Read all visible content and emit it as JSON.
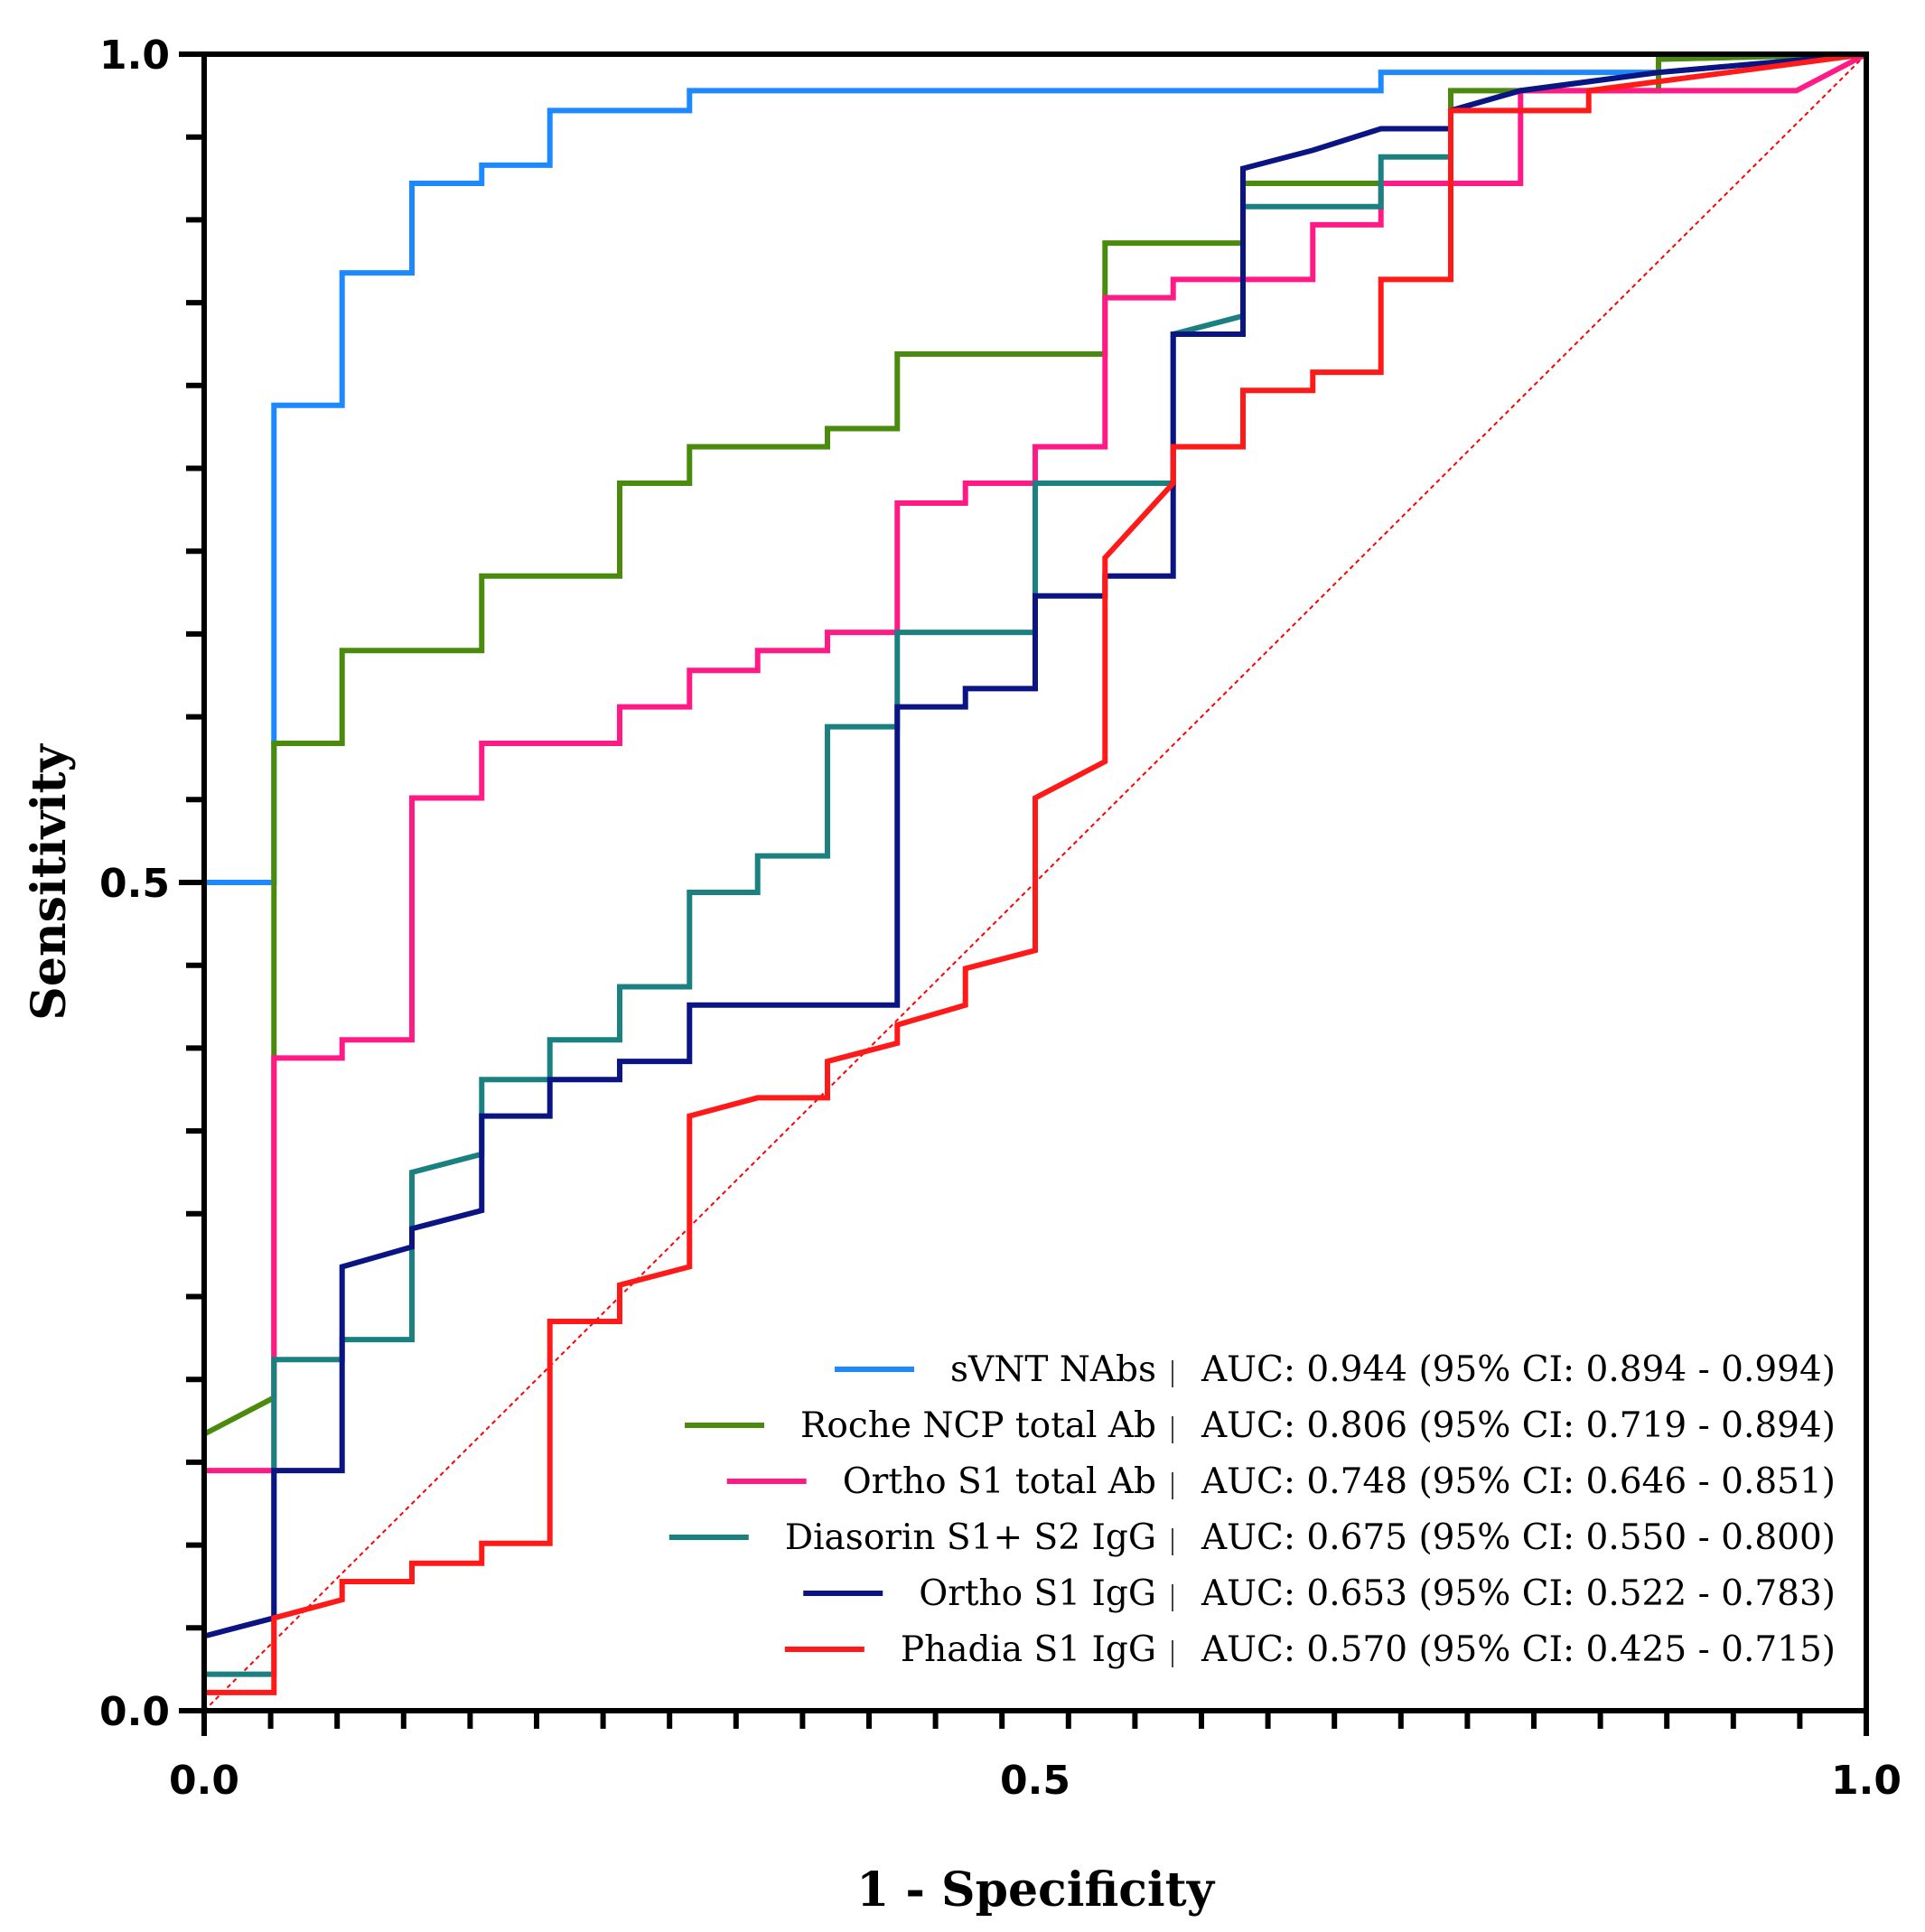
{
  "chart_data": {
    "type": "line",
    "title": "",
    "xlabel": "1 - Specificity",
    "ylabel": "Sensitivity",
    "xlim": [
      0,
      1
    ],
    "ylim": [
      0,
      1
    ],
    "x_major_ticks": [
      "0.0",
      "0.5",
      "1.0"
    ],
    "y_major_ticks": [
      "0.0",
      "0.5",
      "1.0"
    ],
    "grid": false,
    "legend_position": "bottom-right",
    "reference_line": {
      "name": "chance",
      "color": "#ff0000",
      "points": [
        [
          0,
          0
        ],
        [
          1,
          1
        ]
      ]
    },
    "series": [
      {
        "name": "sVNT NAbs",
        "auc_text": "AUC: 0.944 (95% CI: 0.894 - 0.994)",
        "color": "#1e88ff",
        "points": [
          [
            0,
            0
          ],
          [
            0,
            0.5
          ],
          [
            0.042,
            0.5
          ],
          [
            0.042,
            0.788
          ],
          [
            0.083,
            0.788
          ],
          [
            0.083,
            0.868
          ],
          [
            0.125,
            0.868
          ],
          [
            0.125,
            0.922
          ],
          [
            0.167,
            0.922
          ],
          [
            0.167,
            0.933
          ],
          [
            0.208,
            0.933
          ],
          [
            0.208,
            0.966
          ],
          [
            0.292,
            0.966
          ],
          [
            0.292,
            0.978
          ],
          [
            0.708,
            0.978
          ],
          [
            0.708,
            0.989
          ],
          [
            0.875,
            0.989
          ],
          [
            0.875,
            0.997
          ],
          [
            1,
            1
          ]
        ]
      },
      {
        "name": "Roche NCP total Ab",
        "auc_text": "AUC: 0.806 (95% CI: 0.719 - 0.894)",
        "color": "#4a8a0c",
        "points": [
          [
            0,
            0.167
          ],
          [
            0.042,
            0.189
          ],
          [
            0.042,
            0.584
          ],
          [
            0.083,
            0.584
          ],
          [
            0.083,
            0.64
          ],
          [
            0.167,
            0.64
          ],
          [
            0.167,
            0.685
          ],
          [
            0.25,
            0.685
          ],
          [
            0.25,
            0.741
          ],
          [
            0.292,
            0.741
          ],
          [
            0.292,
            0.763
          ],
          [
            0.375,
            0.763
          ],
          [
            0.375,
            0.774
          ],
          [
            0.417,
            0.774
          ],
          [
            0.417,
            0.819
          ],
          [
            0.5,
            0.819
          ],
          [
            0.5,
            0.819
          ],
          [
            0.542,
            0.819
          ],
          [
            0.542,
            0.886
          ],
          [
            0.625,
            0.886
          ],
          [
            0.625,
            0.922
          ],
          [
            0.75,
            0.922
          ],
          [
            0.75,
            0.978
          ],
          [
            0.833,
            0.978
          ],
          [
            0.833,
            0.978
          ],
          [
            0.875,
            0.978
          ],
          [
            0.875,
            0.997
          ],
          [
            1,
            1
          ]
        ]
      },
      {
        "name": "Ortho S1 total Ab",
        "auc_text": "AUC: 0.748 (95% CI: 0.646 - 0.851)",
        "color": "#ff1a85",
        "points": [
          [
            0,
            0.145
          ],
          [
            0.042,
            0.145
          ],
          [
            0.042,
            0.394
          ],
          [
            0.083,
            0.394
          ],
          [
            0.083,
            0.405
          ],
          [
            0.125,
            0.405
          ],
          [
            0.125,
            0.551
          ],
          [
            0.167,
            0.551
          ],
          [
            0.167,
            0.584
          ],
          [
            0.25,
            0.584
          ],
          [
            0.25,
            0.606
          ],
          [
            0.292,
            0.606
          ],
          [
            0.292,
            0.628
          ],
          [
            0.333,
            0.628
          ],
          [
            0.333,
            0.64
          ],
          [
            0.375,
            0.64
          ],
          [
            0.375,
            0.651
          ],
          [
            0.417,
            0.651
          ],
          [
            0.417,
            0.729
          ],
          [
            0.458,
            0.729
          ],
          [
            0.458,
            0.741
          ],
          [
            0.5,
            0.741
          ],
          [
            0.5,
            0.763
          ],
          [
            0.542,
            0.763
          ],
          [
            0.542,
            0.853
          ],
          [
            0.583,
            0.853
          ],
          [
            0.583,
            0.864
          ],
          [
            0.667,
            0.864
          ],
          [
            0.667,
            0.897
          ],
          [
            0.708,
            0.897
          ],
          [
            0.708,
            0.922
          ],
          [
            0.792,
            0.922
          ],
          [
            0.792,
            0.978
          ],
          [
            0.958,
            0.978
          ],
          [
            1,
            1
          ]
        ]
      },
      {
        "name": "Diasorin S1+ S2 IgG",
        "auc_text": "AUC: 0.675 (95% CI: 0.550 - 0.800)",
        "color": "#1b8080",
        "points": [
          [
            0,
            0.022
          ],
          [
            0.042,
            0.022
          ],
          [
            0.042,
            0.212
          ],
          [
            0.083,
            0.212
          ],
          [
            0.083,
            0.224
          ],
          [
            0.125,
            0.224
          ],
          [
            0.125,
            0.325
          ],
          [
            0.167,
            0.336
          ],
          [
            0.167,
            0.381
          ],
          [
            0.208,
            0.381
          ],
          [
            0.208,
            0.405
          ],
          [
            0.25,
            0.405
          ],
          [
            0.25,
            0.437
          ],
          [
            0.292,
            0.437
          ],
          [
            0.292,
            0.494
          ],
          [
            0.333,
            0.494
          ],
          [
            0.333,
            0.516
          ],
          [
            0.375,
            0.516
          ],
          [
            0.375,
            0.594
          ],
          [
            0.417,
            0.594
          ],
          [
            0.417,
            0.651
          ],
          [
            0.458,
            0.651
          ],
          [
            0.458,
            0.651
          ],
          [
            0.5,
            0.651
          ],
          [
            0.5,
            0.741
          ],
          [
            0.542,
            0.741
          ],
          [
            0.583,
            0.741
          ],
          [
            0.583,
            0.831
          ],
          [
            0.625,
            0.842
          ],
          [
            0.625,
            0.908
          ],
          [
            0.708,
            0.908
          ],
          [
            0.708,
            0.938
          ],
          [
            0.75,
            0.938
          ],
          [
            0.75,
            0.966
          ],
          [
            0.792,
            0.978
          ],
          [
            0.875,
            0.989
          ],
          [
            1,
            1
          ]
        ]
      },
      {
        "name": "Ortho S1 IgG",
        "auc_text": "AUC: 0.653 (95% CI: 0.522 - 0.783)",
        "color": "#0a1482",
        "points": [
          [
            0,
            0.045
          ],
          [
            0.042,
            0.056
          ],
          [
            0.042,
            0.145
          ],
          [
            0.083,
            0.145
          ],
          [
            0.083,
            0.268
          ],
          [
            0.125,
            0.28
          ],
          [
            0.125,
            0.291
          ],
          [
            0.167,
            0.302
          ],
          [
            0.167,
            0.359
          ],
          [
            0.208,
            0.359
          ],
          [
            0.208,
            0.381
          ],
          [
            0.25,
            0.381
          ],
          [
            0.25,
            0.392
          ],
          [
            0.292,
            0.392
          ],
          [
            0.292,
            0.426
          ],
          [
            0.417,
            0.426
          ],
          [
            0.417,
            0.606
          ],
          [
            0.458,
            0.606
          ],
          [
            0.458,
            0.617
          ],
          [
            0.5,
            0.617
          ],
          [
            0.5,
            0.673
          ],
          [
            0.542,
            0.673
          ],
          [
            0.542,
            0.685
          ],
          [
            0.583,
            0.685
          ],
          [
            0.583,
            0.831
          ],
          [
            0.625,
            0.831
          ],
          [
            0.625,
            0.931
          ],
          [
            0.667,
            0.942
          ],
          [
            0.708,
            0.955
          ],
          [
            0.75,
            0.955
          ],
          [
            0.75,
            0.966
          ],
          [
            0.792,
            0.978
          ],
          [
            0.875,
            0.989
          ],
          [
            1,
            1
          ]
        ]
      },
      {
        "name": "Phadia S1 IgG",
        "auc_text": "AUC: 0.570 (95% CI: 0.425 - 0.715)",
        "color": "#ff1a1a",
        "points": [
          [
            0,
            0.011
          ],
          [
            0.042,
            0.011
          ],
          [
            0.042,
            0.056
          ],
          [
            0.083,
            0.067
          ],
          [
            0.083,
            0.078
          ],
          [
            0.125,
            0.078
          ],
          [
            0.125,
            0.089
          ],
          [
            0.167,
            0.089
          ],
          [
            0.167,
            0.101
          ],
          [
            0.208,
            0.101
          ],
          [
            0.208,
            0.235
          ],
          [
            0.25,
            0.235
          ],
          [
            0.25,
            0.257
          ],
          [
            0.292,
            0.268
          ],
          [
            0.292,
            0.359
          ],
          [
            0.333,
            0.37
          ],
          [
            0.375,
            0.37
          ],
          [
            0.375,
            0.392
          ],
          [
            0.417,
            0.403
          ],
          [
            0.417,
            0.414
          ],
          [
            0.458,
            0.426
          ],
          [
            0.458,
            0.448
          ],
          [
            0.5,
            0.459
          ],
          [
            0.5,
            0.551
          ],
          [
            0.542,
            0.573
          ],
          [
            0.542,
            0.696
          ],
          [
            0.583,
            0.741
          ],
          [
            0.583,
            0.763
          ],
          [
            0.625,
            0.763
          ],
          [
            0.625,
            0.797
          ],
          [
            0.667,
            0.797
          ],
          [
            0.667,
            0.808
          ],
          [
            0.708,
            0.808
          ],
          [
            0.708,
            0.864
          ],
          [
            0.75,
            0.864
          ],
          [
            0.75,
            0.966
          ],
          [
            0.833,
            0.966
          ],
          [
            0.833,
            0.978
          ],
          [
            0.917,
            0.989
          ],
          [
            1,
            1
          ]
        ]
      }
    ]
  }
}
